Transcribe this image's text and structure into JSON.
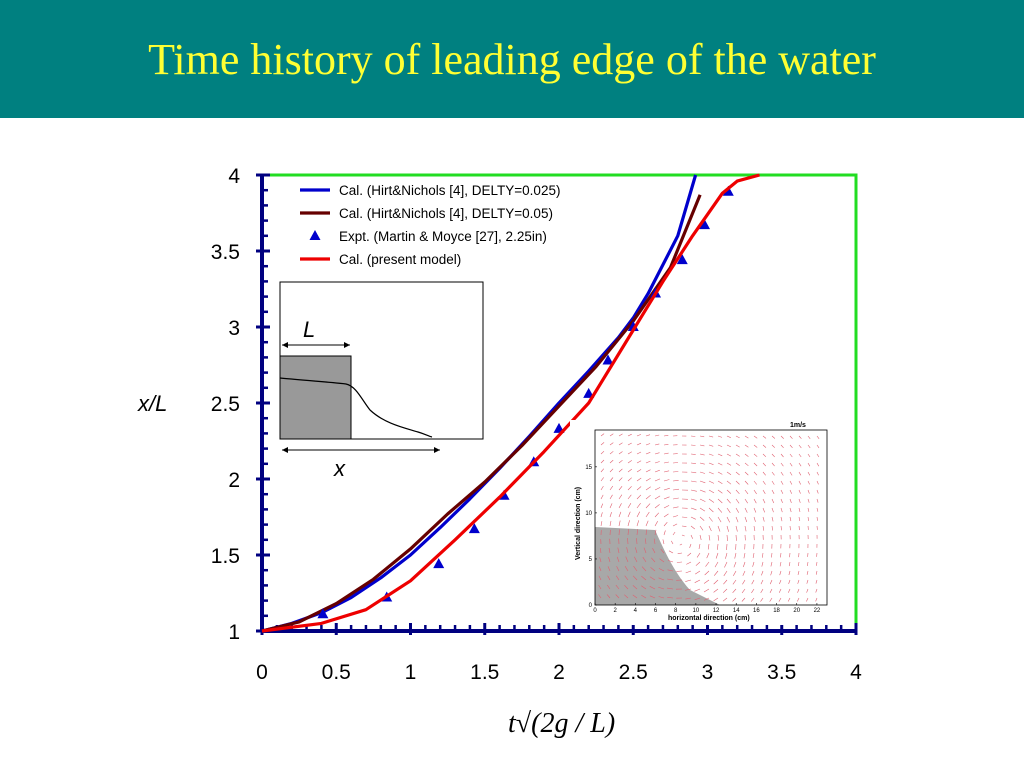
{
  "slide": {
    "title": "Time history of leading edge of the water",
    "title_color": "#ffff33",
    "header_color": "#008080"
  },
  "chart_data": {
    "type": "line",
    "xlabel": "t√(2g / L)",
    "ylabel": "x/L",
    "xlim": [
      0,
      4
    ],
    "ylim": [
      1,
      4
    ],
    "x_ticks": [
      "0",
      "0.5",
      "1",
      "1.5",
      "2",
      "2.5",
      "3",
      "3.5",
      "4"
    ],
    "y_ticks": [
      "1",
      "1.5",
      "2",
      "2.5",
      "3",
      "3.5",
      "4"
    ],
    "legend_position": "top-left",
    "frame_color": "#22dd22",
    "axis_color": "#000080",
    "series": [
      {
        "name": "Cal. (Hirt&Nichols [4], DELTY=0.025)",
        "kind": "line",
        "color": "#0000cc",
        "x": [
          0,
          0.2,
          0.4,
          0.6,
          0.8,
          1.0,
          1.2,
          1.4,
          1.6,
          1.8,
          2.0,
          2.2,
          2.4,
          2.5,
          2.6,
          2.8,
          2.92
        ],
        "y": [
          1.0,
          1.05,
          1.12,
          1.22,
          1.35,
          1.5,
          1.68,
          1.87,
          2.07,
          2.28,
          2.5,
          2.71,
          2.93,
          3.06,
          3.22,
          3.6,
          4.0
        ]
      },
      {
        "name": "Cal. (Hirt&Nichols [4], DELTY=0.05)",
        "kind": "line",
        "color": "#660000",
        "x": [
          0,
          0.25,
          0.5,
          0.75,
          1.0,
          1.25,
          1.5,
          1.75,
          2.0,
          2.25,
          2.5,
          2.75,
          2.95
        ],
        "y": [
          1.0,
          1.06,
          1.18,
          1.34,
          1.54,
          1.77,
          1.98,
          2.22,
          2.48,
          2.74,
          3.04,
          3.39,
          3.87
        ]
      },
      {
        "name": "Expt. (Martin & Moyce [27], 2.25in)",
        "kind": "scatter",
        "color": "#0000cc",
        "x": [
          0.41,
          0.84,
          1.19,
          1.43,
          1.63,
          1.83,
          2.0,
          2.2,
          2.33,
          2.5,
          2.65,
          2.83,
          2.98,
          3.14
        ],
        "y": [
          1.11,
          1.22,
          1.44,
          1.67,
          1.89,
          2.11,
          2.33,
          2.56,
          2.78,
          3.0,
          3.22,
          3.44,
          3.67,
          3.89
        ]
      },
      {
        "name": "Cal. (present model)",
        "kind": "line",
        "color": "#ee0000",
        "x": [
          0,
          0.4,
          0.7,
          1.0,
          1.3,
          1.6,
          1.9,
          2.2,
          2.5,
          2.7,
          2.9,
          3.1,
          3.2,
          3.35
        ],
        "y": [
          1.0,
          1.05,
          1.14,
          1.33,
          1.6,
          1.88,
          2.18,
          2.5,
          2.98,
          3.3,
          3.6,
          3.88,
          3.96,
          4.0
        ]
      }
    ],
    "inset_schematic": {
      "dimension_label_top": "L",
      "dimension_label_bottom": "x"
    },
    "inset_vector_plot": {
      "scale_label": "1m/s",
      "xlabel": "horizontal direction (cm)",
      "ylabel": "Vertical direction (cm)",
      "x_ticks": [
        "0",
        "2",
        "4",
        "6",
        "8",
        "10",
        "12",
        "14",
        "16",
        "18",
        "20",
        "22"
      ],
      "y_ticks": [
        "0",
        "5",
        "10",
        "15"
      ],
      "xlim": [
        0,
        23
      ],
      "ylim": [
        0,
        19
      ],
      "vector_color": "#e06070",
      "water_color": "#999999"
    }
  }
}
